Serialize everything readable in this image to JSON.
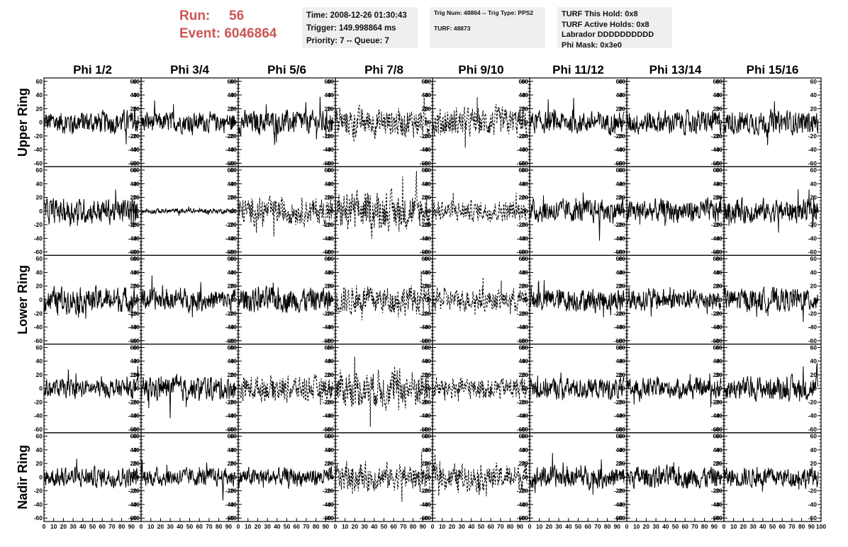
{
  "header": {
    "run_label": "Run:",
    "run_value": "56",
    "event_label": "Event:",
    "event_value": "6046864",
    "time": "Time: 2008-12-26 01:30:43",
    "trigger": "Trigger: 149.998864 ms",
    "priority": "Priority: 7 -- Queue: 7",
    "trig_num": "Trig Num: 48864 -- Trig Type: PPS2",
    "turf": "TURF: 48873",
    "turf_this_hold": "TURF This Hold: 0x8",
    "turf_active_holds": "TURF Active Holds: 0x8",
    "labrador": "Labrador DDDDDDDDDD",
    "phi_mask": "Phi Mask: 0x3e0"
  },
  "colors": {
    "header_red": "#cc5555",
    "info_bg": "#efefef",
    "trace": "#000000"
  },
  "chart_data": {
    "type": "line",
    "title": "",
    "columns": [
      "Phi 1/2",
      "Phi 3/4",
      "Phi 5/6",
      "Phi 7/8",
      "Phi 9/10",
      "Phi 11/12",
      "Phi 13/14",
      "Phi 15/16"
    ],
    "rows": [
      "Upper Ring",
      "",
      "Lower Ring",
      "",
      "Nadir Ring"
    ],
    "ylim": [
      -65,
      65
    ],
    "yticks": [
      -60,
      -40,
      -20,
      0,
      20,
      40,
      60
    ],
    "xlim": [
      0,
      100
    ],
    "xticks": [
      0,
      10,
      20,
      30,
      40,
      50,
      60,
      70,
      80,
      90,
      100
    ],
    "samples_per_trace": 260,
    "grid": false,
    "dashed_panels": [
      [
        0,
        3
      ],
      [
        0,
        4
      ],
      [
        1,
        2
      ],
      [
        1,
        3
      ],
      [
        1,
        4
      ],
      [
        2,
        3
      ],
      [
        2,
        4
      ],
      [
        3,
        2
      ],
      [
        3,
        3
      ],
      [
        3,
        4
      ],
      [
        4,
        3
      ],
      [
        4,
        4
      ]
    ],
    "amplitude": [
      [
        14,
        12,
        14,
        17,
        17,
        13,
        14,
        14
      ],
      [
        15,
        3,
        16,
        22,
        12,
        14,
        14,
        14
      ],
      [
        15,
        13,
        15,
        17,
        13,
        14,
        13,
        14
      ],
      [
        11,
        14,
        15,
        22,
        13,
        13,
        12,
        14
      ],
      [
        12,
        11,
        11,
        16,
        15,
        13,
        13,
        12
      ]
    ]
  }
}
